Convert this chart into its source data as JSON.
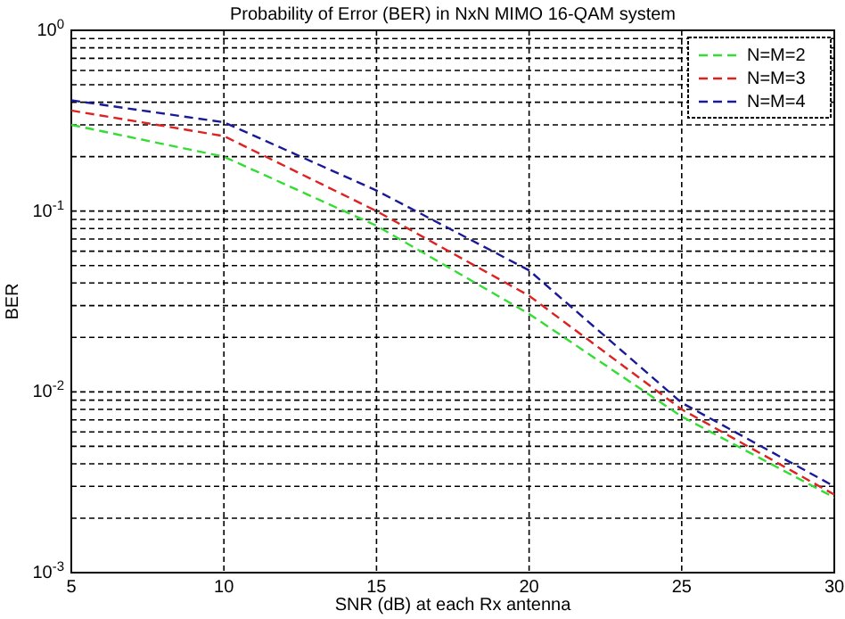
{
  "chart_data": {
    "type": "line",
    "title": "Probability of Error (BER) in NxN MIMO 16-QAM system",
    "xlabel": "SNR (dB) at each Rx antenna",
    "ylabel": "BER",
    "x": [
      5,
      10,
      15,
      20,
      25,
      30
    ],
    "series": [
      {
        "name": "N=M=2",
        "color": "#33dd33",
        "values": [
          0.3,
          0.2,
          0.083,
          0.027,
          0.0073,
          0.0026
        ]
      },
      {
        "name": "N=M=3",
        "color": "#dd2222",
        "values": [
          0.36,
          0.26,
          0.1,
          0.034,
          0.008,
          0.0027
        ]
      },
      {
        "name": "N=M=4",
        "color": "#1a1a99",
        "values": [
          0.41,
          0.31,
          0.13,
          0.047,
          0.0087,
          0.003
        ]
      }
    ],
    "xlim": [
      5,
      30
    ],
    "xticks": [
      5,
      10,
      15,
      20,
      25,
      30
    ],
    "ylim": [
      0.001,
      1
    ],
    "yticks": [
      {
        "value": 0.001,
        "label": "10$^{-3}$"
      },
      {
        "value": 0.01,
        "label": "10$^{-2}$"
      },
      {
        "value": 0.1,
        "label": "10$^{-1}$"
      },
      {
        "value": 1,
        "label": "10$^{0}$"
      }
    ],
    "log": "y",
    "grid": true,
    "legend": "top right",
    "line_style": "dashed",
    "marker": "none"
  }
}
